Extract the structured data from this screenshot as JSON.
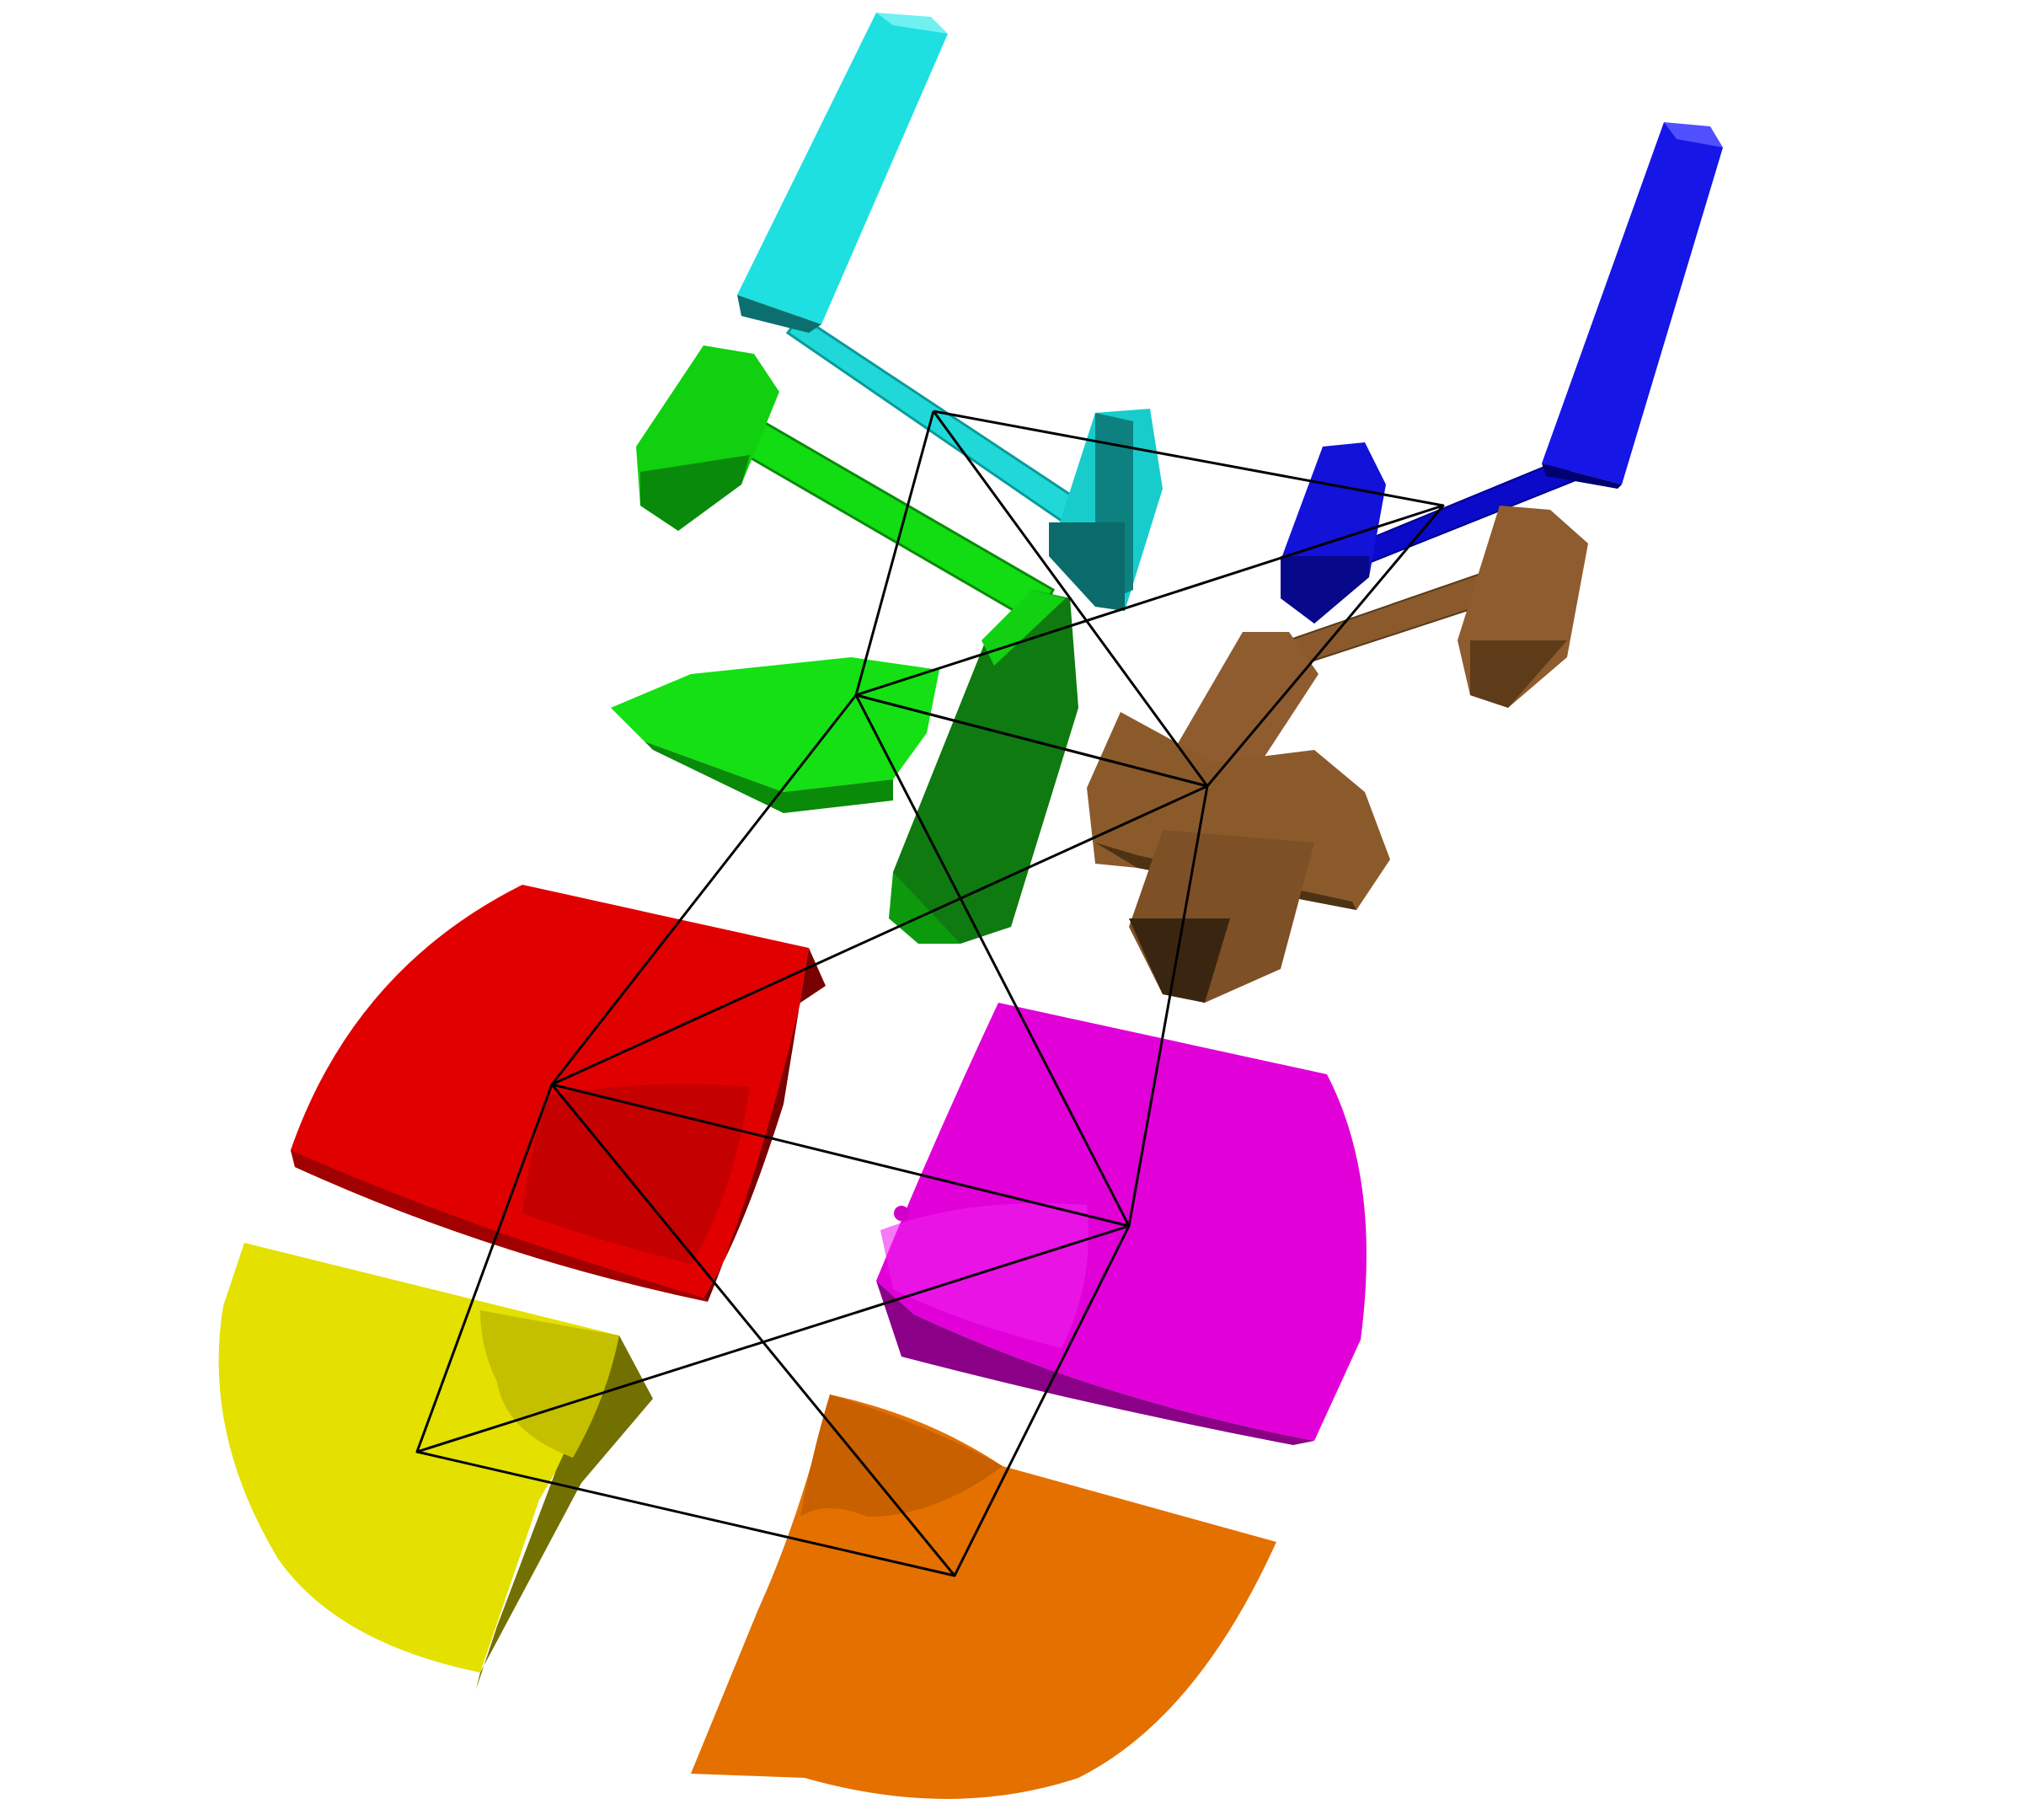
{
  "scene": {
    "background": "#ffffff",
    "pieces": [
      {
        "name": "cyan-bracket",
        "color": "#1ad8d8"
      },
      {
        "name": "blue-bracket",
        "color": "#1010e0"
      },
      {
        "name": "green-bracket",
        "color": "#10dc10"
      },
      {
        "name": "brown-bracket",
        "color": "#8b5a2b"
      },
      {
        "name": "red-block",
        "color": "#e00000"
      },
      {
        "name": "magenta-block",
        "color": "#e000d8"
      },
      {
        "name": "yellow-quarter-disc",
        "color": "#e4e000"
      },
      {
        "name": "orange-quarter-disc",
        "color": "#e47000"
      }
    ],
    "wireframe": {
      "name": "octahedral-lattice",
      "color": "#000000"
    }
  }
}
